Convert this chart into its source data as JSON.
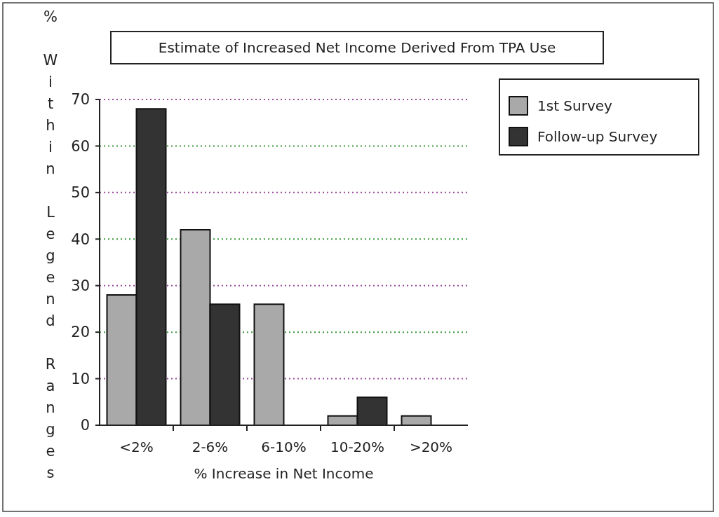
{
  "chart_data": {
    "type": "bar",
    "title": "Estimate of Increased Net Income Derived From TPA Use",
    "xlabel": "% Increase in Net Income",
    "ylabel": "% Within Legend Ranges",
    "categories": [
      "<2%",
      "2-6%",
      "6-10%",
      "10-20%",
      ">20%"
    ],
    "series": [
      {
        "name": "1st Survey",
        "color": "#a9a9a9",
        "values": [
          28,
          42,
          26,
          2,
          2
        ]
      },
      {
        "name": "Follow-up Survey",
        "color": "#333333",
        "values": [
          68,
          26,
          0,
          6,
          0
        ]
      }
    ],
    "ylim": [
      0,
      70
    ],
    "yticks": [
      0,
      10,
      20,
      30,
      40,
      50,
      60,
      70
    ],
    "grid": "y",
    "legend": "top right"
  }
}
